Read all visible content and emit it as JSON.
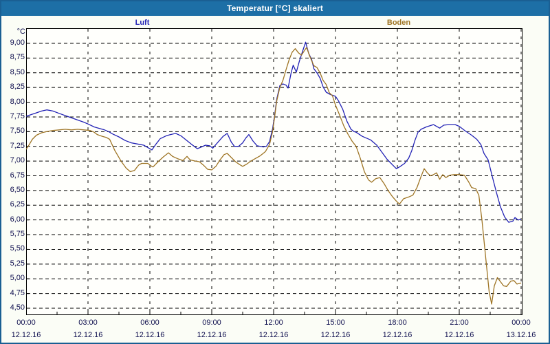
{
  "window": {
    "title": "Temperatur [°C] skaliert"
  },
  "legend": {
    "items": [
      {
        "label": "Luft",
        "color": "#2222b5"
      },
      {
        "label": "Boden",
        "color": "#9e7424"
      }
    ]
  },
  "chart_data": {
    "type": "line",
    "title": "Temperatur [°C] skaliert",
    "ylabel": "°C",
    "grid": "dashed",
    "legend_position": "top",
    "y_axis": {
      "min": 4.5,
      "max": 9.0,
      "step": 0.25,
      "unit": "°C",
      "tick_labels": [
        "9,00",
        "8,75",
        "8,50",
        "8,25",
        "8,00",
        "7,75",
        "7,50",
        "7,25",
        "7,00",
        "6,75",
        "6,50",
        "6,25",
        "6,00",
        "5,75",
        "5,50",
        "5,25",
        "5,00",
        "4,75",
        "4,50"
      ]
    },
    "x_axis": {
      "span_hours": 24,
      "minor_tick_hours": 1.5,
      "ticks": [
        {
          "t": 0,
          "time": "00:00",
          "date": "12.12.16"
        },
        {
          "t": 3,
          "time": "03:00",
          "date": "12.12.16"
        },
        {
          "t": 6,
          "time": "06:00",
          "date": "12.12.16"
        },
        {
          "t": 9,
          "time": "09:00",
          "date": "12.12.16"
        },
        {
          "t": 12,
          "time": "12:00",
          "date": "12.12.16"
        },
        {
          "t": 15,
          "time": "15:00",
          "date": "12.12.16"
        },
        {
          "t": 18,
          "time": "18:00",
          "date": "12.12.16"
        },
        {
          "t": 21,
          "time": "21:00",
          "date": "12.12.16"
        },
        {
          "t": 24,
          "time": "00:00",
          "date": "13.12.16"
        }
      ]
    },
    "series": [
      {
        "name": "Luft",
        "color": "#2222b5",
        "points": [
          [
            0,
            7.76
          ],
          [
            0.25,
            7.79
          ],
          [
            0.5,
            7.82
          ],
          [
            0.75,
            7.85
          ],
          [
            1,
            7.87
          ],
          [
            1.3,
            7.85
          ],
          [
            1.6,
            7.81
          ],
          [
            2,
            7.76
          ],
          [
            2.4,
            7.71
          ],
          [
            2.8,
            7.66
          ],
          [
            3,
            7.63
          ],
          [
            3.3,
            7.58
          ],
          [
            3.5,
            7.56
          ],
          [
            3.8,
            7.53
          ],
          [
            4,
            7.5
          ],
          [
            4.2,
            7.46
          ],
          [
            4.5,
            7.41
          ],
          [
            4.8,
            7.35
          ],
          [
            5.1,
            7.31
          ],
          [
            5.4,
            7.29
          ],
          [
            5.7,
            7.27
          ],
          [
            5.9,
            7.23
          ],
          [
            6.1,
            7.19
          ],
          [
            6.3,
            7.29
          ],
          [
            6.5,
            7.38
          ],
          [
            6.8,
            7.43
          ],
          [
            7,
            7.45
          ],
          [
            7.25,
            7.47
          ],
          [
            7.5,
            7.43
          ],
          [
            7.75,
            7.36
          ],
          [
            8,
            7.29
          ],
          [
            8.3,
            7.21
          ],
          [
            8.5,
            7.24
          ],
          [
            8.7,
            7.27
          ],
          [
            8.9,
            7.26
          ],
          [
            9.05,
            7.22
          ],
          [
            9.3,
            7.32
          ],
          [
            9.55,
            7.42
          ],
          [
            9.75,
            7.47
          ],
          [
            9.95,
            7.32
          ],
          [
            10.1,
            7.25
          ],
          [
            10.3,
            7.25
          ],
          [
            10.5,
            7.31
          ],
          [
            10.65,
            7.39
          ],
          [
            10.8,
            7.45
          ],
          [
            11,
            7.34
          ],
          [
            11.2,
            7.26
          ],
          [
            11.5,
            7.24
          ],
          [
            11.65,
            7.25
          ],
          [
            11.8,
            7.33
          ],
          [
            11.95,
            7.55
          ],
          [
            12.05,
            7.78
          ],
          [
            12.15,
            8.05
          ],
          [
            12.3,
            8.28
          ],
          [
            12.45,
            8.31
          ],
          [
            12.6,
            8.29
          ],
          [
            12.7,
            8.24
          ],
          [
            12.85,
            8.5
          ],
          [
            12.95,
            8.63
          ],
          [
            13.05,
            8.55
          ],
          [
            13.1,
            8.51
          ],
          [
            13.25,
            8.7
          ],
          [
            13.4,
            8.86
          ],
          [
            13.55,
            9.02
          ],
          [
            13.7,
            8.83
          ],
          [
            13.85,
            8.72
          ],
          [
            13.95,
            8.57
          ],
          [
            14.1,
            8.5
          ],
          [
            14.25,
            8.41
          ],
          [
            14.4,
            8.26
          ],
          [
            14.55,
            8.17
          ],
          [
            14.75,
            8.13
          ],
          [
            15,
            8.1
          ],
          [
            15.15,
            8.02
          ],
          [
            15.35,
            7.88
          ],
          [
            15.55,
            7.68
          ],
          [
            15.75,
            7.54
          ],
          [
            15.9,
            7.5
          ],
          [
            16,
            7.49
          ],
          [
            16.3,
            7.42
          ],
          [
            16.7,
            7.36
          ],
          [
            17,
            7.27
          ],
          [
            17.25,
            7.15
          ],
          [
            17.5,
            7.03
          ],
          [
            17.75,
            6.94
          ],
          [
            17.95,
            6.87
          ],
          [
            18.1,
            6.9
          ],
          [
            18.35,
            6.96
          ],
          [
            18.55,
            7.05
          ],
          [
            18.7,
            7.18
          ],
          [
            18.85,
            7.35
          ],
          [
            19,
            7.49
          ],
          [
            19.15,
            7.54
          ],
          [
            19.4,
            7.58
          ],
          [
            19.75,
            7.62
          ],
          [
            20.05,
            7.56
          ],
          [
            20.25,
            7.61
          ],
          [
            20.5,
            7.62
          ],
          [
            20.8,
            7.62
          ],
          [
            21,
            7.59
          ],
          [
            21.3,
            7.51
          ],
          [
            21.6,
            7.44
          ],
          [
            21.85,
            7.37
          ],
          [
            22.05,
            7.28
          ],
          [
            22.2,
            7.13
          ],
          [
            22.4,
            7.02
          ],
          [
            22.6,
            6.74
          ],
          [
            22.8,
            6.47
          ],
          [
            23,
            6.22
          ],
          [
            23.2,
            6.05
          ],
          [
            23.4,
            5.96
          ],
          [
            23.6,
            5.98
          ],
          [
            23.7,
            6.04
          ],
          [
            23.85,
            6.0
          ],
          [
            24,
            6.01
          ]
        ]
      },
      {
        "name": "Boden",
        "color": "#9e7424",
        "points": [
          [
            0,
            7.2
          ],
          [
            0.15,
            7.28
          ],
          [
            0.3,
            7.37
          ],
          [
            0.5,
            7.44
          ],
          [
            0.75,
            7.48
          ],
          [
            1,
            7.5
          ],
          [
            1.3,
            7.52
          ],
          [
            1.6,
            7.53
          ],
          [
            1.9,
            7.54
          ],
          [
            2.2,
            7.53
          ],
          [
            2.5,
            7.54
          ],
          [
            2.8,
            7.53
          ],
          [
            3.1,
            7.52
          ],
          [
            3.3,
            7.49
          ],
          [
            3.45,
            7.45
          ],
          [
            3.7,
            7.42
          ],
          [
            3.9,
            7.4
          ],
          [
            4.05,
            7.37
          ],
          [
            4.3,
            7.18
          ],
          [
            4.6,
            7.0
          ],
          [
            4.85,
            6.88
          ],
          [
            5.05,
            6.82
          ],
          [
            5.25,
            6.84
          ],
          [
            5.45,
            6.93
          ],
          [
            5.6,
            6.96
          ],
          [
            5.9,
            6.96
          ],
          [
            6.05,
            6.92
          ],
          [
            6.15,
            6.9
          ],
          [
            6.4,
            6.99
          ],
          [
            6.65,
            7.07
          ],
          [
            6.9,
            7.14
          ],
          [
            7.1,
            7.08
          ],
          [
            7.35,
            7.04
          ],
          [
            7.6,
            7.01
          ],
          [
            7.8,
            7.08
          ],
          [
            7.95,
            7.02
          ],
          [
            8.2,
            7.0
          ],
          [
            8.4,
            6.99
          ],
          [
            8.6,
            6.93
          ],
          [
            8.8,
            6.86
          ],
          [
            9,
            6.85
          ],
          [
            9.2,
            6.91
          ],
          [
            9.4,
            7.02
          ],
          [
            9.6,
            7.11
          ],
          [
            9.75,
            7.13
          ],
          [
            9.95,
            7.06
          ],
          [
            10.15,
            6.99
          ],
          [
            10.35,
            6.94
          ],
          [
            10.5,
            6.91
          ],
          [
            10.7,
            6.95
          ],
          [
            10.9,
            7.0
          ],
          [
            11.1,
            7.04
          ],
          [
            11.35,
            7.09
          ],
          [
            11.6,
            7.16
          ],
          [
            11.8,
            7.28
          ],
          [
            11.95,
            7.5
          ],
          [
            12.05,
            7.75
          ],
          [
            12.15,
            8.02
          ],
          [
            12.3,
            8.25
          ],
          [
            12.45,
            8.37
          ],
          [
            12.6,
            8.55
          ],
          [
            12.75,
            8.72
          ],
          [
            12.9,
            8.85
          ],
          [
            13.05,
            8.91
          ],
          [
            13.2,
            8.84
          ],
          [
            13.35,
            8.8
          ],
          [
            13.5,
            8.88
          ],
          [
            13.6,
            8.93
          ],
          [
            13.75,
            8.78
          ],
          [
            13.95,
            8.62
          ],
          [
            14.1,
            8.59
          ],
          [
            14.25,
            8.5
          ],
          [
            14.4,
            8.37
          ],
          [
            14.55,
            8.3
          ],
          [
            14.7,
            8.16
          ],
          [
            14.85,
            8.11
          ],
          [
            15,
            7.95
          ],
          [
            15.2,
            7.78
          ],
          [
            15.4,
            7.6
          ],
          [
            15.6,
            7.46
          ],
          [
            15.8,
            7.34
          ],
          [
            16,
            7.25
          ],
          [
            16.2,
            7.05
          ],
          [
            16.4,
            6.82
          ],
          [
            16.6,
            6.68
          ],
          [
            16.75,
            6.64
          ],
          [
            16.95,
            6.7
          ],
          [
            17.15,
            6.72
          ],
          [
            17.35,
            6.62
          ],
          [
            17.55,
            6.5
          ],
          [
            17.75,
            6.4
          ],
          [
            17.95,
            6.32
          ],
          [
            18.1,
            6.27
          ],
          [
            18.3,
            6.36
          ],
          [
            18.55,
            6.39
          ],
          [
            18.75,
            6.42
          ],
          [
            18.95,
            6.55
          ],
          [
            19.15,
            6.74
          ],
          [
            19.3,
            6.87
          ],
          [
            19.45,
            6.8
          ],
          [
            19.6,
            6.75
          ],
          [
            19.75,
            6.77
          ],
          [
            19.9,
            6.8
          ],
          [
            20.05,
            6.69
          ],
          [
            20.2,
            6.77
          ],
          [
            20.35,
            6.72
          ],
          [
            20.55,
            6.76
          ],
          [
            20.75,
            6.77
          ],
          [
            21,
            6.77
          ],
          [
            21.25,
            6.76
          ],
          [
            21.45,
            6.65
          ],
          [
            21.6,
            6.55
          ],
          [
            21.8,
            6.53
          ],
          [
            21.95,
            6.42
          ],
          [
            22.1,
            6.0
          ],
          [
            22.3,
            5.3
          ],
          [
            22.45,
            4.78
          ],
          [
            22.57,
            4.57
          ],
          [
            22.7,
            4.88
          ],
          [
            22.85,
            5.02
          ],
          [
            23,
            4.95
          ],
          [
            23.15,
            4.88
          ],
          [
            23.3,
            4.87
          ],
          [
            23.5,
            4.96
          ],
          [
            23.65,
            4.97
          ],
          [
            23.8,
            4.91
          ],
          [
            24,
            4.93
          ]
        ]
      }
    ],
    "colors": {
      "titlebar": "#1d6fa6",
      "window_border": "#1a5f93",
      "plot_background": "#fffffc",
      "grid": "#000000",
      "axis_text": "#0d0d4d"
    }
  }
}
